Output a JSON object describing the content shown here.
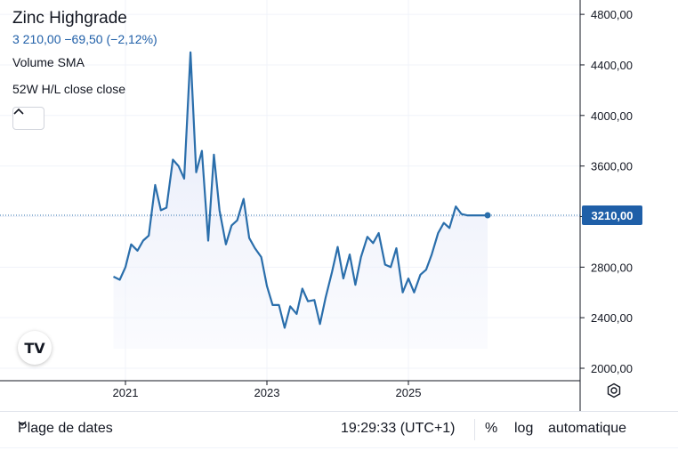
{
  "header": {
    "title": "Zinc Highgrade",
    "quote": "3 210,00  −69,50 (−2,12%)",
    "indicator_1": "Volume SMA",
    "indicator_2": "52W H/L close close",
    "collapse_icon": "chevron-up-icon"
  },
  "price_label": "3210,00",
  "logo_text": "TV",
  "bottom_bar": {
    "date_range": "Plage de dates",
    "time": "19:29:33 (UTC+1)",
    "percent": "%",
    "log": "log",
    "auto": "automatique"
  },
  "colors": {
    "line": "#2a6eab",
    "area_fill": "#e8ecfa",
    "price_label_bg": "#1f5fa8",
    "grid": "#f0f3fa"
  },
  "chart_data": {
    "type": "area",
    "ylim": [
      1900,
      4900
    ],
    "y_ticks": [
      2000,
      2400,
      2800,
      3200,
      3600,
      4000,
      4400,
      4800
    ],
    "y_tick_labels": [
      "2000,00",
      "2400,00",
      "2800,00",
      "3200,00",
      "3600,00",
      "4000,00",
      "4400,00",
      "4800,00"
    ],
    "x_tick_labels": [
      "2021",
      "2023",
      "2025"
    ],
    "x_ticks": [
      2021.0,
      2023.0,
      2025.0
    ],
    "xlim": [
      2019.6,
      2026.7
    ],
    "last_value": 3210,
    "grid": true,
    "series": [
      {
        "x": [
          2020.83,
          2020.92,
          2021.0,
          2021.08,
          2021.17,
          2021.25,
          2021.33,
          2021.42,
          2021.5,
          2021.58,
          2021.67,
          2021.75,
          2021.83,
          2021.92,
          2022.0,
          2022.08,
          2022.17,
          2022.25,
          2022.33,
          2022.42,
          2022.5,
          2022.58,
          2022.67,
          2022.75,
          2022.83,
          2022.92,
          2023.0,
          2023.08,
          2023.17,
          2023.25,
          2023.33,
          2023.42,
          2023.5,
          2023.58,
          2023.67,
          2023.75,
          2023.83,
          2023.92,
          2024.0,
          2024.08,
          2024.17,
          2024.25,
          2024.33,
          2024.42,
          2024.5,
          2024.58,
          2024.67,
          2024.75,
          2024.83,
          2024.92,
          2025.0,
          2025.08,
          2025.17,
          2025.25,
          2025.33,
          2025.42,
          2025.5,
          2025.58,
          2025.67,
          2025.75,
          2025.83,
          2025.92,
          2026.0,
          2026.08,
          2026.12
        ],
        "y": [
          2725,
          2700,
          2800,
          2980,
          2930,
          3010,
          3050,
          3450,
          3250,
          3270,
          3650,
          3600,
          3500,
          4500,
          3550,
          3720,
          3010,
          3690,
          3250,
          2980,
          3130,
          3170,
          3340,
          3030,
          2950,
          2880,
          2650,
          2500,
          2500,
          2320,
          2490,
          2430,
          2630,
          2530,
          2540,
          2350,
          2560,
          2760,
          2960,
          2710,
          2900,
          2660,
          2880,
          3040,
          2990,
          3070,
          2820,
          2800,
          2950,
          2600,
          2710,
          2600,
          2740,
          2780,
          2900,
          3070,
          3150,
          3110,
          3280,
          3220,
          3210,
          3210,
          3210,
          3210,
          3210
        ]
      }
    ]
  }
}
